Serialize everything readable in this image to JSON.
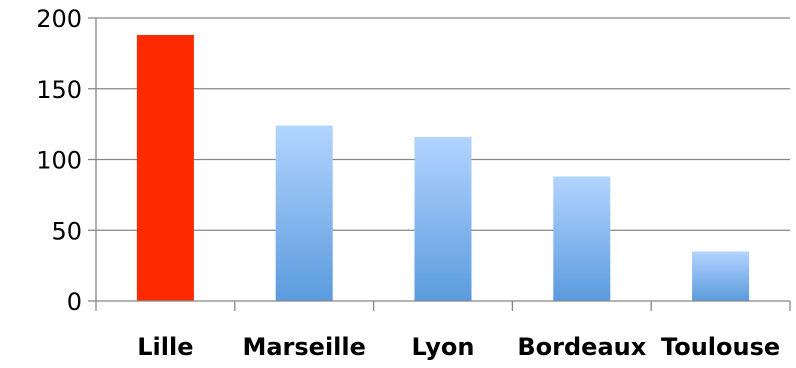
{
  "chart_data": {
    "type": "bar",
    "categories": [
      "Lille",
      "Marseille",
      "Lyon",
      "Bordeaux",
      "Toulouse"
    ],
    "values": [
      188,
      124,
      116,
      88,
      35
    ],
    "highlight_index": 0,
    "ylim": [
      0,
      200
    ],
    "yticks": [
      0,
      50,
      100,
      150,
      200
    ],
    "grid": true,
    "legend": "none",
    "title": "",
    "xlabel": "",
    "ylabel": "",
    "colors": {
      "highlight": "#ff2a00",
      "bar_gradient_top": "#b3d4ff",
      "bar_gradient_bottom": "#5b9bdd",
      "gridline": "#878787",
      "axis": "#878787"
    }
  }
}
